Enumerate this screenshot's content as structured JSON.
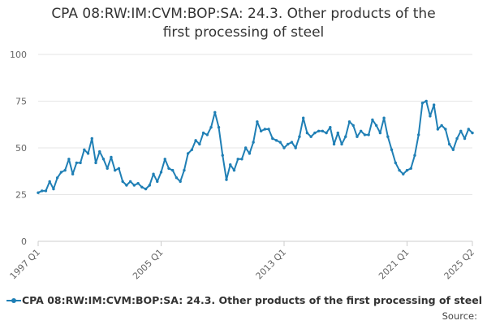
{
  "chart_data": {
    "type": "line",
    "title_line1": "CPA 08:RW:IM:CVM:BOP:SA: 24.3. Other products of the",
    "title_line2": "first processing of steel",
    "xlabel": "",
    "ylabel": "",
    "ylim": [
      0,
      100
    ],
    "yticks": [
      "0",
      "25",
      "50",
      "75",
      "100"
    ],
    "xtick_labels": [
      "1997 Q1",
      "2005 Q1",
      "2013 Q1",
      "2021 Q1",
      "2025 Q2"
    ],
    "grid": true,
    "legend_position": "bottom",
    "series": [
      {
        "name": "CPA 08:RW:IM:CVM:BOP:SA: 24.3. Other products of the first processing of steel",
        "color": "#1f7fb5",
        "start_period": "1997 Q1",
        "values": [
          26,
          27,
          27,
          32,
          28,
          34,
          37,
          38,
          44,
          36,
          42,
          42,
          49,
          47,
          55,
          42,
          48,
          44,
          39,
          45,
          38,
          39,
          32,
          30,
          32,
          30,
          31,
          29,
          28,
          30,
          36,
          32,
          37,
          44,
          39,
          38,
          34,
          32,
          38,
          47,
          49,
          54,
          52,
          58,
          57,
          61,
          69,
          61,
          46,
          33,
          41,
          38,
          44,
          44,
          50,
          47,
          53,
          64,
          59,
          60,
          60,
          55,
          54,
          53,
          50,
          52,
          53,
          50,
          56,
          66,
          58,
          56,
          58,
          59,
          59,
          58,
          61,
          52,
          58,
          52,
          56,
          64,
          62,
          56,
          59,
          57,
          57,
          65,
          62,
          58,
          66,
          56,
          49,
          42,
          38,
          36,
          38,
          39,
          46,
          57,
          74,
          75,
          67,
          73,
          60,
          62,
          60,
          52,
          49,
          55,
          59,
          55,
          60,
          58
        ]
      }
    ]
  },
  "legend": {
    "label": "CPA 08:RW:IM:CVM:BOP:SA: 24.3. Other products of the first processing of steel"
  },
  "source": {
    "label": "Source:"
  }
}
